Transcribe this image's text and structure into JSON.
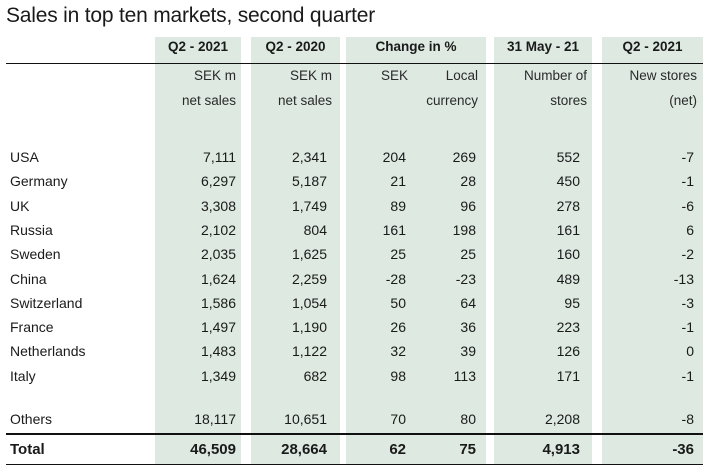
{
  "title": "Sales in top ten markets, second quarter",
  "headers": {
    "q2_2021": "Q2 - 2021",
    "q2_2020": "Q2 - 2020",
    "change": "Change in %",
    "stores_date": "31 May - 21",
    "new_stores": "Q2 - 2021"
  },
  "subheaders": {
    "c1_l1": "SEK m",
    "c1_l2": "net sales",
    "c2_l1": "SEK m",
    "c2_l2": "net sales",
    "c3_l1": "SEK",
    "c4_l1": "Local",
    "c4_l2": "currency",
    "c5_l1": "Number of",
    "c5_l2": "stores",
    "c6_l1": "New stores",
    "c6_l2": "(net)"
  },
  "rows": [
    {
      "market": "USA",
      "sales_2021": "7,111",
      "sales_2020": "2,341",
      "change_sek": "204",
      "change_local": "269",
      "stores": "552",
      "new_stores": "-7"
    },
    {
      "market": "Germany",
      "sales_2021": "6,297",
      "sales_2020": "5,187",
      "change_sek": "21",
      "change_local": "28",
      "stores": "450",
      "new_stores": "-1"
    },
    {
      "market": "UK",
      "sales_2021": "3,308",
      "sales_2020": "1,749",
      "change_sek": "89",
      "change_local": "96",
      "stores": "278",
      "new_stores": "-6"
    },
    {
      "market": "Russia",
      "sales_2021": "2,102",
      "sales_2020": "804",
      "change_sek": "161",
      "change_local": "198",
      "stores": "161",
      "new_stores": "6"
    },
    {
      "market": "Sweden",
      "sales_2021": "2,035",
      "sales_2020": "1,625",
      "change_sek": "25",
      "change_local": "25",
      "stores": "160",
      "new_stores": "-2"
    },
    {
      "market": "China",
      "sales_2021": "1,624",
      "sales_2020": "2,259",
      "change_sek": "-28",
      "change_local": "-23",
      "stores": "489",
      "new_stores": "-13"
    },
    {
      "market": "Switzerland",
      "sales_2021": "1,586",
      "sales_2020": "1,054",
      "change_sek": "50",
      "change_local": "64",
      "stores": "95",
      "new_stores": "-3"
    },
    {
      "market": "France",
      "sales_2021": "1,497",
      "sales_2020": "1,190",
      "change_sek": "26",
      "change_local": "36",
      "stores": "223",
      "new_stores": "-1"
    },
    {
      "market": "Netherlands",
      "sales_2021": "1,483",
      "sales_2020": "1,122",
      "change_sek": "32",
      "change_local": "39",
      "stores": "126",
      "new_stores": "0"
    },
    {
      "market": "Italy",
      "sales_2021": "1,349",
      "sales_2020": "682",
      "change_sek": "98",
      "change_local": "113",
      "stores": "171",
      "new_stores": "-1"
    }
  ],
  "others": {
    "market": "Others",
    "sales_2021": "18,117",
    "sales_2020": "10,651",
    "change_sek": "70",
    "change_local": "80",
    "stores": "2,208",
    "new_stores": "-8"
  },
  "total": {
    "market": "Total",
    "sales_2021": "46,509",
    "sales_2020": "28,664",
    "change_sek": "62",
    "change_local": "75",
    "stores": "4,913",
    "new_stores": "-36"
  },
  "colors": {
    "band": "#dde9e1",
    "rule": "#111111"
  }
}
